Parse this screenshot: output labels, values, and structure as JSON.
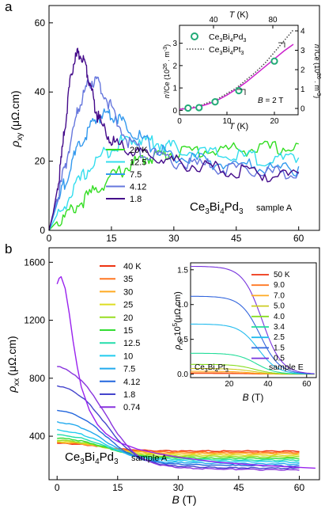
{
  "chart_data": [
    {
      "type": "line",
      "panel_label": "a",
      "xlim": [
        0,
        65
      ],
      "ylim": [
        0,
        65
      ],
      "x_ticks": [
        "0",
        "15",
        "30",
        "45",
        "60"
      ],
      "y_ticks": [
        "0",
        "20",
        "40",
        "60"
      ],
      "ylabel_symbol": "ρ",
      "ylabel_sub": "xy",
      "ylabel_unit": "(μΩ.cm)",
      "sample": "Ce3Bi4Pd3",
      "sample_note": "sample A",
      "series": [
        {
          "name": "20 K",
          "color": "#33dd22",
          "x": [
            0,
            3,
            6,
            9,
            12,
            15,
            18,
            21,
            24,
            27,
            30,
            35,
            40,
            45,
            50,
            55,
            60
          ],
          "y": [
            0,
            4,
            7.5,
            10.5,
            13.5,
            16.5,
            18.8,
            20.8,
            22.3,
            23,
            23.5,
            24,
            24.3,
            24.5,
            24.7,
            24.8,
            25
          ]
        },
        {
          "name": "12.5",
          "color": "#33ddee",
          "x": [
            0,
            3,
            6,
            9,
            12,
            15,
            18,
            21,
            24,
            27,
            30,
            35,
            40,
            45,
            50,
            55,
            60
          ],
          "y": [
            0,
            7,
            13,
            18,
            22,
            25,
            27,
            27.5,
            27,
            26,
            25,
            24,
            23,
            22.5,
            22,
            21.5,
            21
          ]
        },
        {
          "name": "7.5",
          "color": "#3399ee",
          "x": [
            0,
            2,
            4,
            6,
            8,
            10,
            12,
            14,
            16,
            18,
            21,
            24,
            27,
            30,
            35,
            40,
            45,
            50,
            55,
            60
          ],
          "y": [
            0,
            8,
            16,
            22,
            27,
            31,
            34,
            35,
            34.3,
            32,
            29,
            26,
            24,
            22.5,
            21.5,
            20.5,
            20,
            19.5,
            19,
            18.5
          ]
        },
        {
          "name": "4.12",
          "color": "#6677dd",
          "x": [
            0,
            1.5,
            3,
            4.5,
            6,
            7.5,
            9,
            10.5,
            12,
            14,
            16,
            19,
            22,
            26,
            30,
            35,
            40,
            45,
            50,
            55,
            60
          ],
          "y": [
            0,
            7,
            15,
            23,
            31,
            38,
            42.5,
            44.5,
            43.5,
            39,
            33,
            27,
            24,
            22.5,
            21,
            20,
            19.5,
            18.5,
            18,
            17.5,
            17
          ]
        },
        {
          "name": "1.8",
          "color": "#440a8a",
          "x": [
            0,
            1,
            2,
            3,
            4,
            5,
            6,
            7,
            8,
            9,
            10,
            11,
            12,
            14,
            16,
            19,
            22,
            26,
            30,
            35,
            40,
            45,
            50,
            55,
            60
          ],
          "y": [
            0,
            5,
            12,
            22,
            33,
            43,
            50,
            52,
            51.5,
            48,
            43,
            37,
            33,
            29,
            26,
            24,
            23,
            22,
            21,
            20,
            19,
            18,
            17.5,
            17,
            16.5
          ]
        }
      ],
      "inset": {
        "type": "scatter",
        "top_axis_label": "T (K)",
        "top_ticks": [
          "40",
          "80"
        ],
        "bottom_axis_label": "T (K)",
        "bottom_ticks": [
          "0",
          "10",
          "20"
        ],
        "left_ticks": [
          "0",
          "1",
          "2",
          "3"
        ],
        "right_ticks": [
          "0",
          "1",
          "2",
          "3",
          "4"
        ],
        "left_label": "n'/Ce (10^26 . m^-3)",
        "right_label": "n'/Ce (10^26 . m^-3)",
        "field_note": "B = 2 T",
        "xlim": [
          0,
          25
        ],
        "ylim": [
          -0.2,
          3.8
        ],
        "legend": [
          {
            "name": "Ce3Bi4Pd3",
            "marker": "circle",
            "color": "#22aa77"
          },
          {
            "name": "Ce3Bi4Pt3",
            "marker": "dotted",
            "color": "#444444"
          }
        ],
        "points": {
          "x": [
            1.8,
            4.12,
            7.5,
            12.5,
            20
          ],
          "y": [
            0.1,
            0.12,
            0.38,
            0.88,
            2.2
          ]
        },
        "fit_curve": {
          "x": [
            0,
            2,
            4,
            6,
            8,
            10,
            12,
            14,
            16,
            18,
            20,
            22,
            24
          ],
          "y": [
            0.05,
            0.08,
            0.15,
            0.28,
            0.45,
            0.68,
            0.95,
            1.25,
            1.6,
            1.95,
            2.3,
            2.65,
            2.95
          ]
        },
        "pt3_curve": {
          "x": [
            0,
            4,
            8,
            12,
            16,
            18,
            20,
            22,
            24
          ],
          "y": [
            0.05,
            0.18,
            0.5,
            1.0,
            1.7,
            2.1,
            2.6,
            3.1,
            3.6
          ]
        }
      }
    },
    {
      "type": "line",
      "panel_label": "b",
      "xlim": [
        -2,
        65
      ],
      "ylim": [
        100,
        1700
      ],
      "x_ticks": [
        "0",
        "15",
        "30",
        "45",
        "60"
      ],
      "y_ticks": [
        "400",
        "800",
        "1200",
        "1600"
      ],
      "xlabel": "B (T)",
      "ylabel_symbol": "ρ",
      "ylabel_sub": "xx",
      "ylabel_unit": "(μΩ.cm)",
      "sample": "Ce3Bi4Pd3",
      "sample_note": "sample A",
      "series": [
        {
          "name": "40 K",
          "color": "#ee3311",
          "B0": 355,
          "Binf": 300
        },
        {
          "name": "35",
          "color": "#ff7722",
          "B0": 360,
          "Binf": 292
        },
        {
          "name": "30",
          "color": "#ffaa22",
          "B0": 365,
          "Binf": 285
        },
        {
          "name": "25",
          "color": "#dddd22",
          "B0": 372,
          "Binf": 275
        },
        {
          "name": "20",
          "color": "#99dd22",
          "B0": 380,
          "Binf": 265
        },
        {
          "name": "15",
          "color": "#33dd33",
          "B0": 395,
          "Binf": 255
        },
        {
          "name": "12.5",
          "color": "#22ddaa",
          "B0": 420,
          "Binf": 245
        },
        {
          "name": "10",
          "color": "#22ccee",
          "B0": 455,
          "Binf": 235
        },
        {
          "name": "7.5",
          "color": "#22aaee",
          "B0": 515,
          "Binf": 222
        },
        {
          "name": "4.12",
          "color": "#2266dd",
          "B0": 600,
          "Binf": 210
        },
        {
          "name": "1.8",
          "color": "#4444cc",
          "B0": 780,
          "Binf": 195
        },
        {
          "name": "0.74",
          "color": "#8833dd",
          "B0": 920,
          "Binf": 185
        }
      ],
      "peak_curve": {
        "name": "peak",
        "color": "#9922ee",
        "x": [
          0,
          0.5,
          1,
          2,
          3,
          4,
          5,
          6,
          8,
          10,
          12,
          14,
          16,
          20,
          25,
          30,
          40,
          50,
          60,
          64
        ],
        "y": [
          1450,
          1490,
          1500,
          1420,
          1250,
          1050,
          880,
          740,
          580,
          480,
          420,
          380,
          350,
          310,
          280,
          255,
          220,
          200,
          185,
          180
        ]
      },
      "inset": {
        "type": "line",
        "xlim": [
          0,
          65
        ],
        "ylim": [
          -0.05,
          1.6
        ],
        "x_ticks": [
          "20",
          "40",
          "60"
        ],
        "y_ticks": [
          "0.0",
          "0.5",
          "1.0",
          "1.5"
        ],
        "xlabel": "B (T)",
        "ylabel_symbol": "ρ",
        "ylabel_sub": "xx",
        "ylabel_unit": "10^5(μΩ.cm)",
        "sample": "Ce3Bi4Pt3",
        "sample_note": "sample E",
        "series": [
          {
            "name": "50 K",
            "color": "#ee3311",
            "R0": 0.01,
            "B50": 30,
            "w": 5
          },
          {
            "name": "9.0",
            "color": "#ff7722",
            "R0": 0.02,
            "B50": 30,
            "w": 5
          },
          {
            "name": "7.0",
            "color": "#ffaa22",
            "R0": 0.04,
            "B50": 31,
            "w": 5
          },
          {
            "name": "5.0",
            "color": "#cccc22",
            "R0": 0.08,
            "B50": 32,
            "w": 5
          },
          {
            "name": "4.0",
            "color": "#88dd22",
            "R0": 0.14,
            "B50": 33,
            "w": 5
          },
          {
            "name": "3.4",
            "color": "#22dd99",
            "R0": 0.3,
            "B50": 34,
            "w": 5
          },
          {
            "name": "2.5",
            "color": "#22bbee",
            "R0": 0.72,
            "B50": 35,
            "w": 5
          },
          {
            "name": "1.5",
            "color": "#3366dd",
            "R0": 1.12,
            "B50": 36,
            "w": 5
          },
          {
            "name": "0.5",
            "color": "#7733dd",
            "R0": 1.55,
            "B50": 37,
            "w": 5
          }
        ]
      }
    }
  ]
}
